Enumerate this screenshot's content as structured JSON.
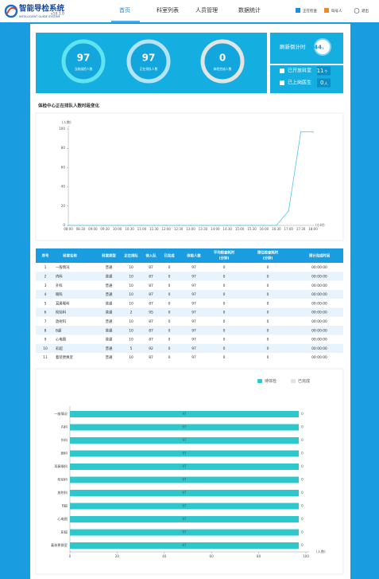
{
  "header": {
    "logo_title": "智能导检系统",
    "logo_subtitle": "INTELLIGENT GUIDE SYSTEM",
    "version": "v10.1.0",
    "nav": [
      "首页",
      "科室列表",
      "人员管理",
      "数据统计"
    ],
    "legend": [
      {
        "label": "正在检查",
        "color": "#1a8fe0"
      },
      {
        "label": "叫号人",
        "color": "#f0892a"
      }
    ],
    "logout": "退出"
  },
  "stats": {
    "circles": [
      {
        "value": 97,
        "label": "当前候检人数",
        "ring": "#5fe3ee"
      },
      {
        "value": 97,
        "label": "正在排队人数",
        "ring": "#b4e4f6"
      },
      {
        "value": 0,
        "label": "体检完成人数",
        "ring": "#e4e4e4"
      }
    ],
    "countdown_label": "刷新倒计时",
    "countdown": {
      "value": 44,
      "unit": "s"
    },
    "open_departments": {
      "label": "已开放科室",
      "value": 11,
      "unit": "个"
    },
    "doctors_on_duty": {
      "label": "已上岗医生",
      "value": 0,
      "unit": "人"
    }
  },
  "chart_data": [
    {
      "type": "line",
      "title": "体检中心正在排队人数时段变化",
      "y_label": "(人数)",
      "x_label": "(小时)",
      "categories": [
        "08:00",
        "08:30",
        "09:00",
        "09:30",
        "10:00",
        "10:30",
        "11:00",
        "11:30",
        "12:00",
        "12:30",
        "13:00",
        "13:30",
        "14:00",
        "14:30",
        "15:00",
        "15:30",
        "16:00",
        "16:30",
        "17:00",
        "17:30",
        "18:00"
      ],
      "values": [
        0,
        0,
        0,
        0,
        0,
        0,
        0,
        0,
        0,
        0,
        0,
        0,
        0,
        0,
        0,
        0,
        0,
        0,
        15,
        97,
        97
      ],
      "color": "#4fc3e8",
      "ylim": [
        0,
        100
      ],
      "yticks": [
        0,
        20,
        40,
        60,
        80,
        100
      ]
    },
    {
      "type": "bar",
      "orientation": "horizontal",
      "stacked": true,
      "x_label": "(人数)",
      "categories": [
        "一般情况",
        "内科",
        "外科",
        "眼科",
        "耳鼻喉科",
        "检验科",
        "放射科",
        "B超",
        "心电图",
        "彩超",
        "着装更换室"
      ],
      "series": [
        {
          "name": "待体检",
          "color": "#2ec8cc",
          "values": [
            97,
            97,
            97,
            97,
            97,
            97,
            97,
            97,
            97,
            97,
            97
          ]
        },
        {
          "name": "已完成",
          "color": "#e2e2e2",
          "values": [
            0,
            0,
            0,
            0,
            0,
            0,
            0,
            0,
            0,
            0,
            0
          ]
        }
      ],
      "xlim": [
        0,
        100
      ],
      "xticks": [
        0,
        20,
        40,
        60,
        80,
        100
      ]
    }
  ],
  "table": {
    "headers": [
      [
        "序号"
      ],
      [
        "科室名称"
      ],
      [
        "科室类型"
      ],
      [
        "正在排队"
      ],
      [
        "待入队"
      ],
      [
        "已完成"
      ],
      [
        "体检人数"
      ],
      [
        "平均检查耗时",
        "(分钟)"
      ],
      [
        "预估检查耗时",
        "(分钟)"
      ],
      [
        "预计完成时间"
      ]
    ],
    "rows": [
      [
        1,
        "一般情况",
        "普通",
        10,
        87,
        0,
        97,
        0,
        0,
        "00:00:00"
      ],
      [
        2,
        "内科",
        "普通",
        10,
        87,
        0,
        97,
        0,
        0,
        "00:00:00"
      ],
      [
        3,
        "外科",
        "普通",
        10,
        87,
        0,
        97,
        0,
        0,
        "00:00:00"
      ],
      [
        4,
        "眼科",
        "普通",
        10,
        87,
        0,
        97,
        0,
        0,
        "00:00:00"
      ],
      [
        5,
        "耳鼻喉科",
        "普通",
        10,
        87,
        0,
        97,
        0,
        0,
        "00:00:00"
      ],
      [
        6,
        "检验科",
        "普通",
        2,
        95,
        0,
        97,
        0,
        0,
        "00:00:00"
      ],
      [
        7,
        "放射科",
        "普通",
        10,
        87,
        0,
        97,
        0,
        0,
        "00:00:00"
      ],
      [
        8,
        "B超",
        "普通",
        10,
        87,
        0,
        97,
        0,
        0,
        "00:00:00"
      ],
      [
        9,
        "心电图",
        "普通",
        10,
        87,
        0,
        97,
        0,
        0,
        "00:00:00"
      ],
      [
        10,
        "彩超",
        "普通",
        5,
        92,
        0,
        97,
        0,
        0,
        "00:00:00"
      ],
      [
        11,
        "着装更换室",
        "普通",
        10,
        87,
        0,
        97,
        0,
        0,
        "00:00:00"
      ]
    ]
  }
}
